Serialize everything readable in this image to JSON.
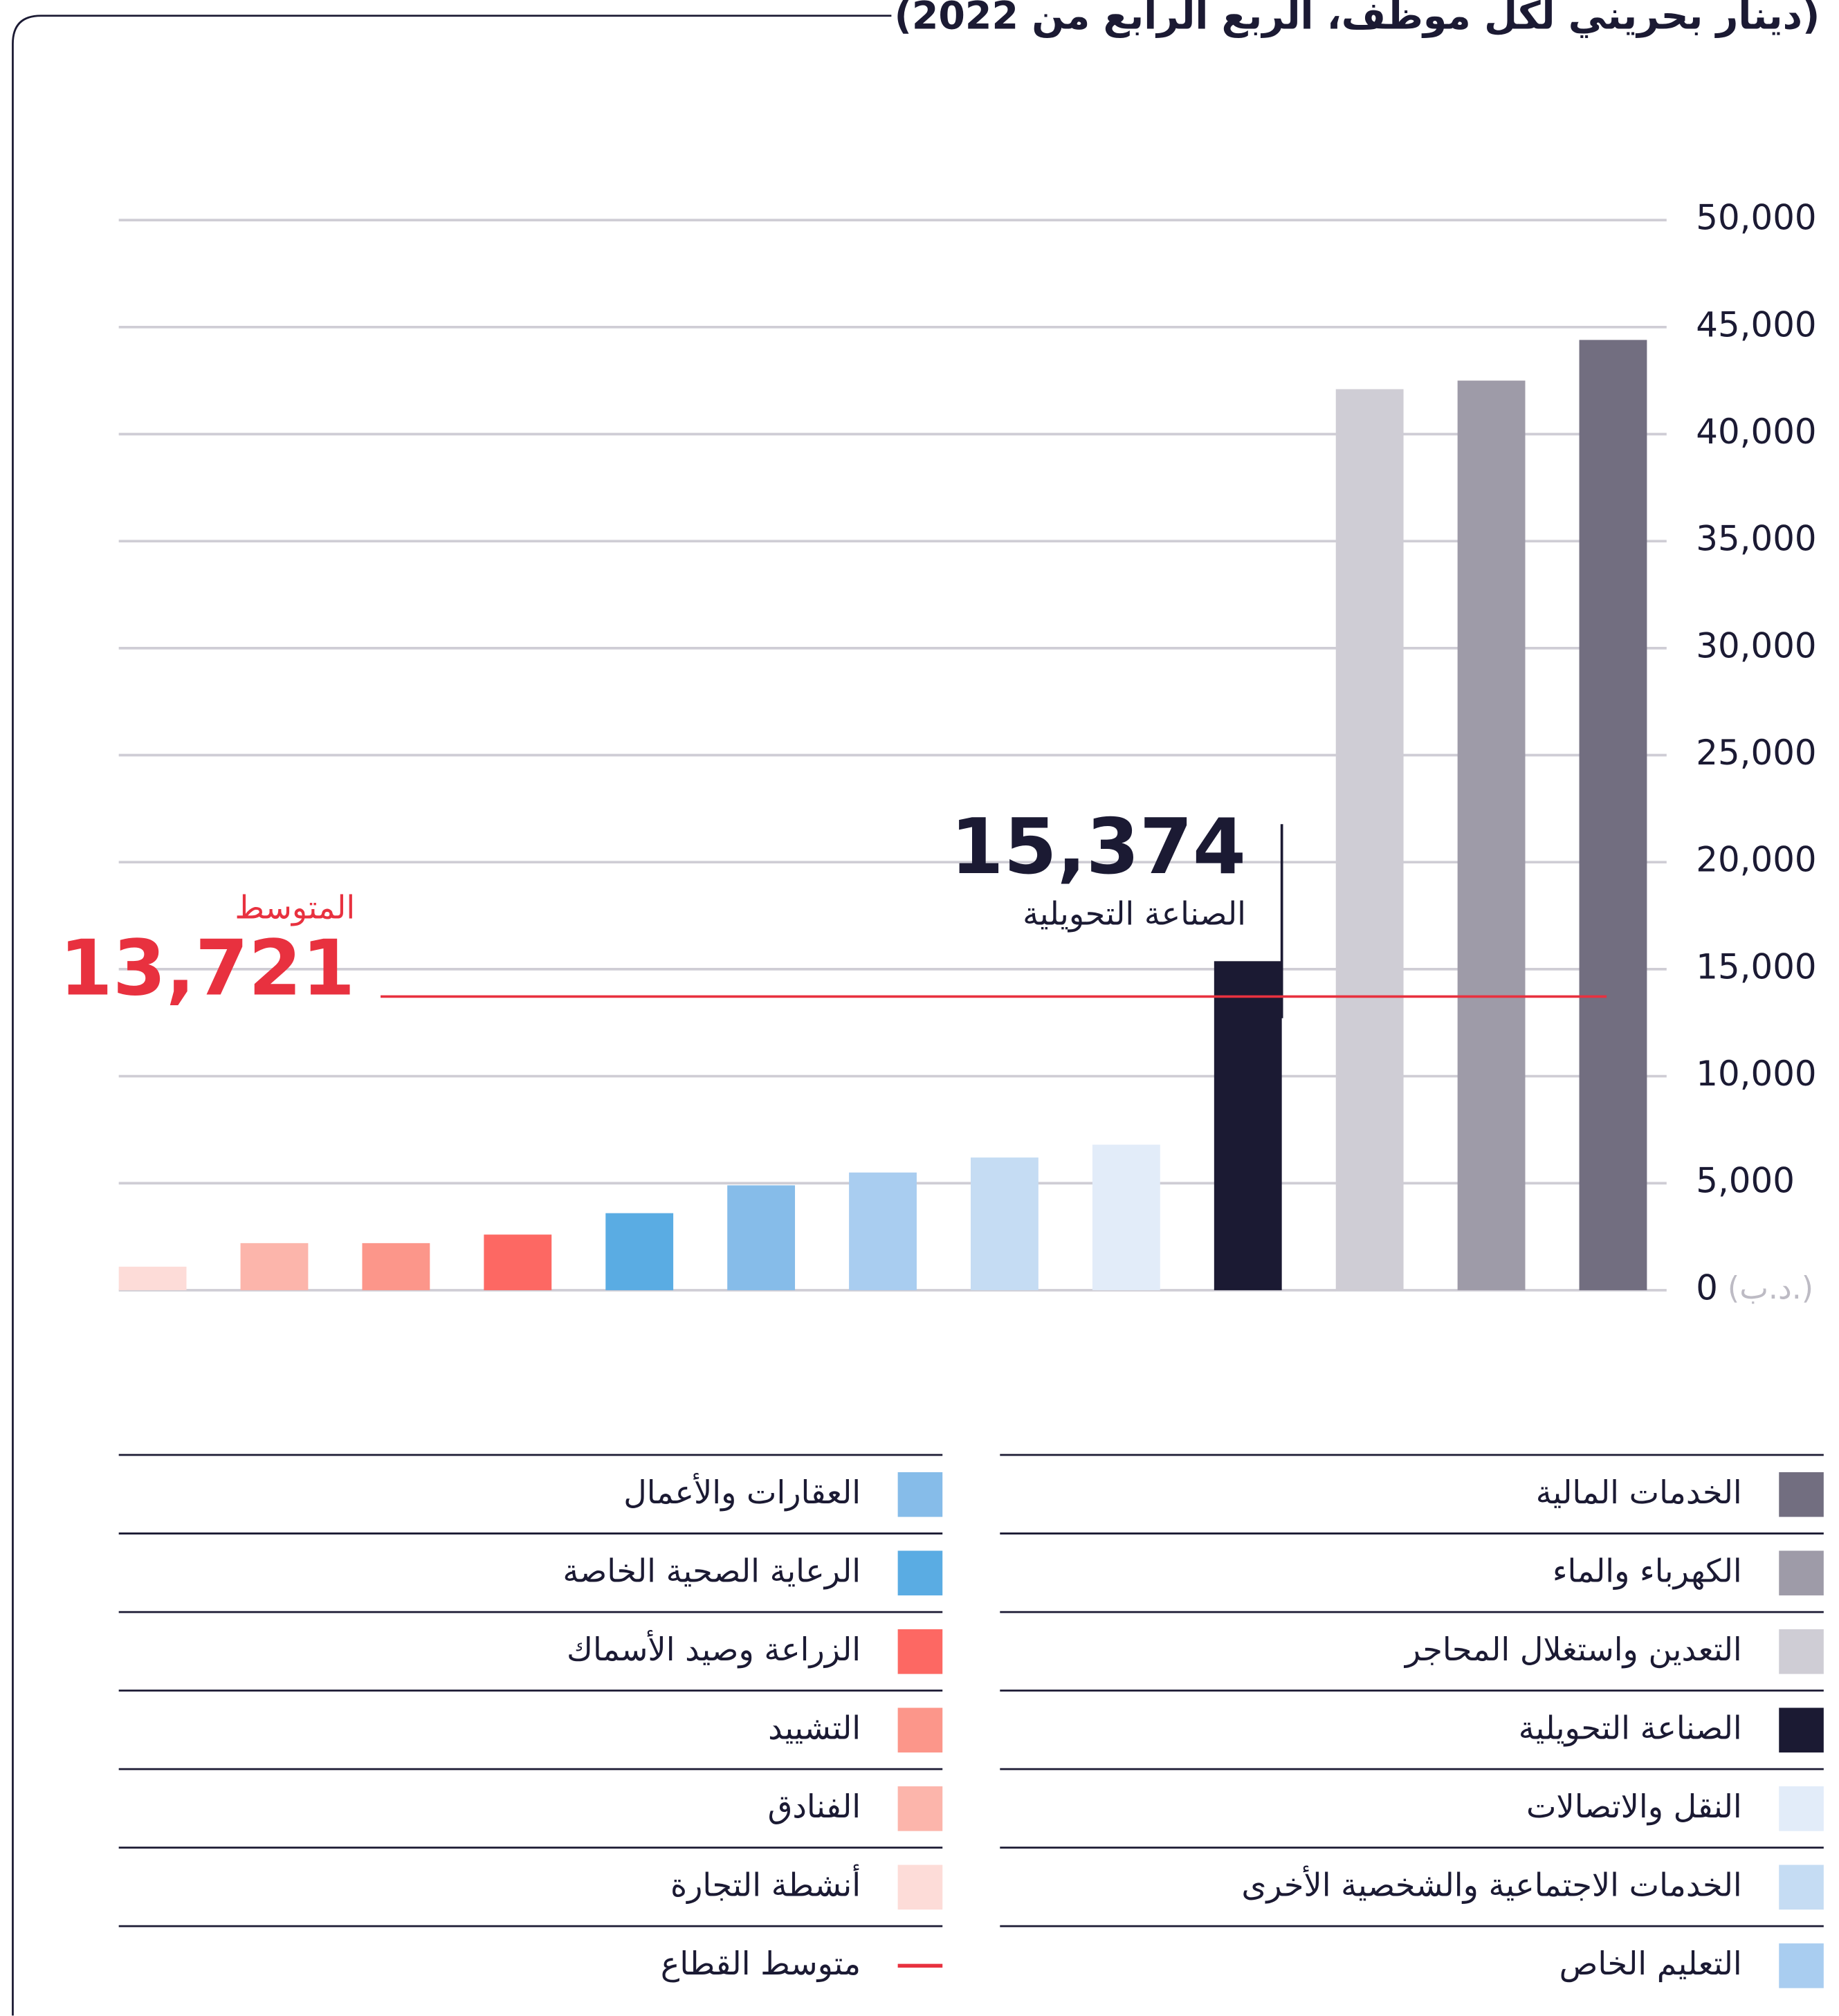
{
  "chart_data": {
    "type": "bar",
    "title": "(دينار بحريني لكل موظف، الربع الرابع من 2022)",
    "y_unit": "(د.ب.)",
    "categories": [
      "أنشطة التجارة",
      "الفنادق",
      "التشييد",
      "الزراعة وصيد الأسماك",
      "الرعاية الصحية الخاصة",
      "العقارات والأعمال",
      "التعليم الخاص",
      "الخدمات الاجتماعية والشخصية الأخرى",
      "النقل والاتصالات",
      "الصناعة التحويلية",
      "التعدين واستغلال المحاجر",
      "الكهرباء والماء",
      "الخدمات المالية"
    ],
    "values": [
      1100,
      2200,
      2200,
      2600,
      3600,
      4900,
      5500,
      6200,
      6800,
      15374,
      42100,
      42500,
      44400
    ],
    "value_labels": [
      null,
      null,
      null,
      null,
      null,
      null,
      null,
      null,
      null,
      "15,374",
      null,
      null,
      null
    ],
    "colors": [
      "#fddcd8",
      "#fcb5ab",
      "#fc968a",
      "#fd6863",
      "#5aace3",
      "#86bce9",
      "#a9cdf0",
      "#c5dcf3",
      "#e2ecf9",
      "#1b1a33",
      "#cfcdd5",
      "#9e9ba8",
      "#726e80"
    ],
    "mean": {
      "name": "متوسط القطاع",
      "label": "المتوسط",
      "value": 13721,
      "value_label": "13,721",
      "color": "#e8313f"
    },
    "ylim": [
      0,
      50000
    ],
    "yticks": [
      0,
      {
        "value": 5000,
        "label": "5,000"
      },
      {
        "value": 10000,
        "label": "10,000"
      },
      {
        "value": 15000,
        "label": "15,000"
      },
      {
        "value": 20000,
        "label": "20,000"
      },
      {
        "value": 25000,
        "label": "25,000"
      },
      {
        "value": 30000,
        "label": "30,000"
      },
      {
        "value": 35000,
        "label": "35,000"
      },
      {
        "value": 40000,
        "label": "40,000"
      },
      {
        "value": 45000,
        "label": "45,000"
      },
      {
        "value": 50000,
        "label": "50,000"
      }
    ],
    "grid": true
  }
}
